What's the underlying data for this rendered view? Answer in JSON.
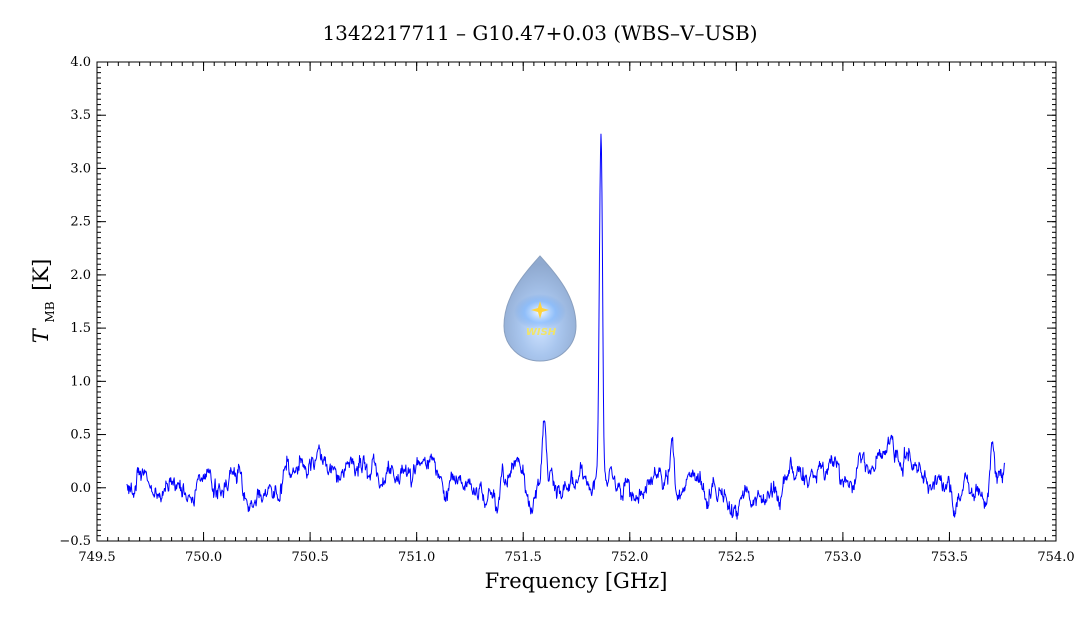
{
  "chart_data": {
    "type": "line",
    "title": "1342217711 – G10.47+0.03 (WBS–V–USB)",
    "xlabel": "Frequency [GHz]",
    "ylabel": {
      "symbol": "T",
      "subscript": "MB",
      "unit": "[K]"
    },
    "xlim": [
      749.5,
      754.0
    ],
    "ylim": [
      -0.5,
      4.0
    ],
    "xticks": [
      "749.5",
      "750.0",
      "750.5",
      "751.0",
      "751.5",
      "752.0",
      "752.5",
      "753.0",
      "753.5",
      "754.0"
    ],
    "yticks": [
      "−0.5",
      "0.0",
      "0.5",
      "1.0",
      "1.5",
      "2.0",
      "2.5",
      "3.0",
      "3.5",
      "4.0"
    ],
    "grid": false,
    "series": [
      {
        "color": "#0000ff",
        "x_start": 749.64,
        "x_end": 753.76,
        "baseline": 0.02,
        "noise_rms": 0.05,
        "features": [
          {
            "x": 751.865,
            "peak": 3.4,
            "note": "main emission line"
          },
          {
            "x": 751.876,
            "peak": -0.3,
            "note": "absorption dip"
          },
          {
            "x": 751.6,
            "peak": 0.45
          },
          {
            "x": 751.4,
            "peak": 0.35
          },
          {
            "x": 752.2,
            "peak": 0.3
          },
          {
            "x": 753.7,
            "peak": 0.38
          },
          {
            "x": 750.17,
            "peak": 0.25
          }
        ]
      }
    ],
    "logo": {
      "text": "WISH",
      "position": "center-left"
    }
  }
}
